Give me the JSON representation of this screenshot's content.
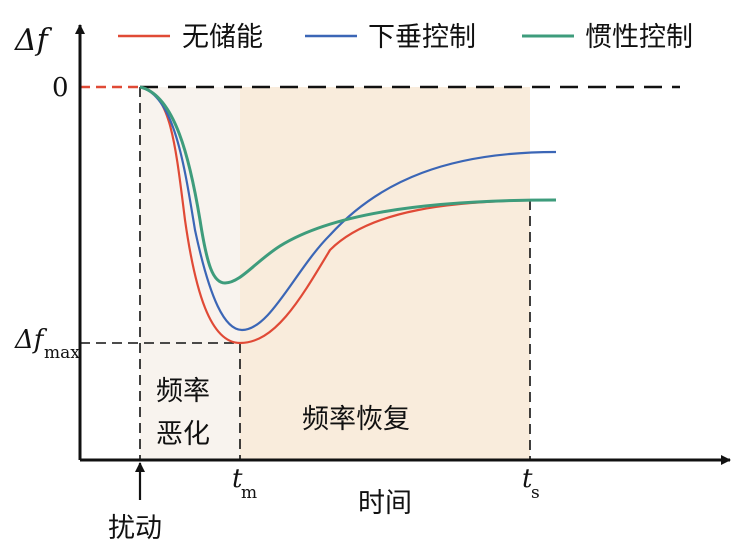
{
  "legend": [
    {
      "label": "无储能",
      "color": "#e04a36"
    },
    {
      "label": "下垂控制",
      "color": "#3b66b6"
    },
    {
      "label": "惯性控制",
      "color": "#3e9c7c"
    }
  ],
  "axes": {
    "y_symbol": "Δf",
    "y_zero_label": "0",
    "y_max_label_main": "Δf",
    "y_max_label_sub": "max",
    "x_label": "时间",
    "disturbance_label": "扰动",
    "tm_main": "t",
    "tm_sub": "m",
    "ts_main": "t",
    "ts_sub": "s"
  },
  "regions": {
    "deterioration_line1": "频率",
    "deterioration_line2": "恶化",
    "recovery": "频率恢复"
  },
  "colors": {
    "axis": "#111111",
    "deterioration_fill": "#f8f3ee",
    "recovery_fill": "#f9ecdc"
  }
}
